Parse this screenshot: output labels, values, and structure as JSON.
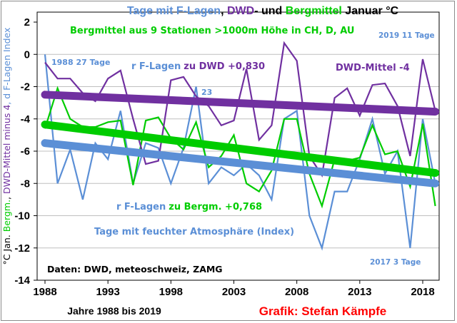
{
  "chart_data": {
    "type": "line",
    "title_parts": [
      {
        "text": "Tage mit F-Lagen",
        "color": "#5b8fd6"
      },
      {
        "text": ", ",
        "color": "#000000"
      },
      {
        "text": "DWD",
        "color": "#7030a0"
      },
      {
        "text": "- und ",
        "color": "#000000"
      },
      {
        "text": "Bergmittel",
        "color": "#00cc00"
      },
      {
        "text": " Januar °C",
        "color": "#000000"
      }
    ],
    "ylabel_parts": [
      {
        "text": "°C Jan. ",
        "color": "#000000"
      },
      {
        "text": "Bergm.",
        "color": "#00cc00"
      },
      {
        "text": ", ",
        "color": "#000000"
      },
      {
        "text": "DWD-Mittel minus 4",
        "color": "#7030a0"
      },
      {
        "text": ", d F-Lagen Index",
        "color": "#5b8fd6"
      }
    ],
    "xlabel": "Jahre 1988 bis 2019",
    "ylim": [
      -14,
      2
    ],
    "xlim": [
      1988,
      2019.6
    ],
    "yticks": [
      "2",
      "0",
      "-2",
      "-4",
      "-6",
      "-8",
      "-10",
      "-12",
      "-14"
    ],
    "ytick_values": [
      2,
      0,
      -2,
      -4,
      -6,
      -8,
      -10,
      -12,
      -14
    ],
    "xticks": [
      "1988",
      "1993",
      "1998",
      "2003",
      "2008",
      "2013",
      "2018"
    ],
    "xtick_values": [
      1988,
      1993,
      1998,
      2003,
      2008,
      2013,
      2018
    ],
    "grid": true,
    "x": [
      1988,
      1989,
      1990,
      1991,
      1992,
      1993,
      1994,
      1995,
      1996,
      1997,
      1998,
      1999,
      2000,
      2001,
      2002,
      2003,
      2004,
      2005,
      2006,
      2007,
      2008,
      2009,
      2010,
      2011,
      2012,
      2013,
      2014,
      2015,
      2016,
      2017,
      2018,
      2019
    ],
    "series": [
      {
        "name": "Tage mit feuchter Atmosphäre (Index)",
        "color": "#5b8fd6",
        "values": [
          0,
          -8,
          -5.9,
          -9,
          -5.5,
          -6.5,
          -3.5,
          -8,
          -5.5,
          -5.8,
          -8,
          -5.8,
          -2,
          -8,
          -7,
          -7.5,
          -6.8,
          -7.5,
          -9,
          -4,
          -3.5,
          -10,
          -12,
          -8.5,
          -8.5,
          -6.5,
          -4,
          -7.4,
          -6,
          -12,
          -4,
          -8
        ],
        "trend": [
          -5.5,
          -8.0
        ]
      },
      {
        "name": "Bergmittel aus 9 Stationen >1000m Höhe in CH, D, AU",
        "color": "#00cc00",
        "values": [
          -4.6,
          -2.1,
          -4,
          -4.5,
          -4.5,
          -4.2,
          -4.1,
          -8.1,
          -4.1,
          -3.9,
          -5.2,
          -5.9,
          -4.2,
          -7,
          -6.3,
          -5,
          -8,
          -8.5,
          -7.2,
          -4,
          -4,
          -7.4,
          -9.4,
          -6.5,
          -6.6,
          -6.4,
          -4.4,
          -6.2,
          -6,
          -8.2,
          -4.3,
          -9.4
        ],
        "trend": [
          -4.35,
          -7.35
        ]
      },
      {
        "name": "DWD-Mittel -4",
        "color": "#7030a0",
        "values": [
          -0.5,
          -1.5,
          -1.5,
          -2.4,
          -2.9,
          -1.5,
          -1,
          -4,
          -6.8,
          -6.6,
          -1.6,
          -1.4,
          -2.6,
          -3.2,
          -4.4,
          -4.1,
          -0.9,
          -5.3,
          -4.4,
          0.7,
          -0.4,
          -6.3,
          -7.5,
          -2.7,
          -2.1,
          -3.8,
          -1.9,
          -1.8,
          -3.2,
          -6.3,
          -0.3,
          -3.5
        ],
        "trend": [
          -2.5,
          -3.55
        ]
      }
    ],
    "annotations": {
      "bergmittel_label": "Bergmittel aus 9 Stationen >1000m Höhe in CH, D, AU",
      "first_year": "1988  27 Tage",
      "r_dwd_prefix": "r F-Lagen",
      "r_dwd_suffix": "zu DWD +0,830",
      "dwd_label": "DWD-Mittel -4",
      "last_year": "2019 11 Tage",
      "value_2000": "23",
      "r_berg_prefix": "r F-Lagen",
      "r_berg_suffix": "zu Bergm. +0,768",
      "index_label": "Tage mit feuchter Atmosphäre (Index)",
      "min_year": "2017 3 Tage",
      "source": "Daten: DWD, meteoschweiz, ZAMG",
      "credit": "Grafik: Stefan Kämpfe"
    }
  }
}
